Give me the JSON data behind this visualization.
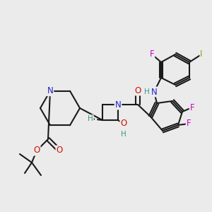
{
  "bg_color": "#ebebeb",
  "bond_color": "#1a1a1a",
  "bond_width": 1.5,
  "figsize": [
    3.0,
    3.0
  ],
  "dpi": 100,
  "label_colors": {
    "N": "#2222cc",
    "O": "#cc1100",
    "F": "#cc00cc",
    "I": "#999900",
    "H": "#339988",
    "C": "#1a1a1a"
  },
  "font_size": 8.5
}
